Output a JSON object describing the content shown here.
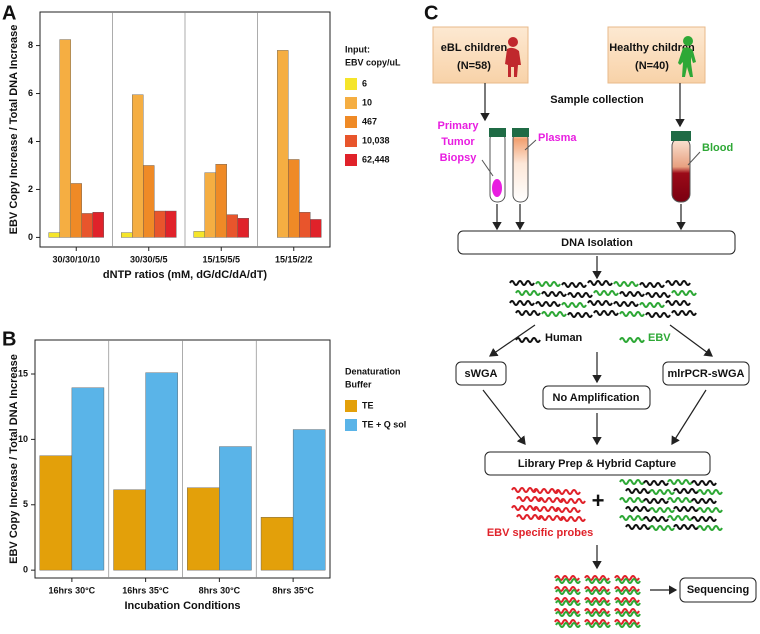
{
  "chart_data": [
    {
      "type": "bar",
      "panel": "A",
      "ylabel": "EBV Copy Increase / Total DNA Increase",
      "xlabel": "dNTP ratios (mM, dG/dC/dA/dT)",
      "categories": [
        "30/30/10/10",
        "30/30/5/5",
        "15/15/5/5",
        "15/15/2/2"
      ],
      "legend_title": [
        "Input:",
        "EBV copy/uL"
      ],
      "series": [
        {
          "name": "6",
          "color": "#f5e52a",
          "values": [
            0.2,
            0.2,
            0.25,
            null
          ]
        },
        {
          "name": "10",
          "color": "#f5ae42",
          "values": [
            8.25,
            5.95,
            2.7,
            7.8
          ]
        },
        {
          "name": "467",
          "color": "#ef8a26",
          "values": [
            2.25,
            3.0,
            3.05,
            3.25
          ]
        },
        {
          "name": "10,038",
          "color": "#e8552c",
          "values": [
            1.0,
            1.1,
            0.95,
            1.05
          ]
        },
        {
          "name": "62,448",
          "color": "#e0222a",
          "values": [
            1.05,
            1.1,
            0.8,
            0.75
          ]
        }
      ],
      "ylim": [
        -0.4,
        9.4
      ],
      "yticks": [
        0,
        2,
        4,
        6,
        8
      ],
      "legend": "right"
    },
    {
      "type": "bar",
      "panel": "B",
      "ylabel": "EBV Copy Increase / Total DNA Increase",
      "xlabel": "Incubation Conditions",
      "categories": [
        "16hrs 30°C",
        "16hrs 35°C",
        "8hrs 30°C",
        "8hrs 35°C"
      ],
      "legend_title": [
        "Denaturation",
        "Buffer"
      ],
      "series": [
        {
          "name": "TE",
          "color": "#e3a00a",
          "values": [
            8.75,
            6.15,
            6.3,
            4.05
          ]
        },
        {
          "name": "TE + Q sol",
          "color": "#5ab4e8",
          "values": [
            13.95,
            15.1,
            9.45,
            10.75
          ]
        }
      ],
      "ylim": [
        -0.6,
        17.6
      ],
      "yticks": [
        0,
        5,
        10,
        15
      ],
      "legend": "right"
    }
  ],
  "diagram": {
    "panel": "C",
    "groups": [
      {
        "label": "eBL children",
        "n": "(N=58)"
      },
      {
        "label": "Healthy children",
        "n": "(N=40)"
      }
    ],
    "sample_collection": "Sample collection",
    "biopsy": [
      "Primary",
      "Tumor",
      "Biopsy"
    ],
    "plasma": "Plasma",
    "blood": "Blood",
    "dna_isolation": "DNA Isolation",
    "human": "Human",
    "ebv": "EBV",
    "methods": [
      "sWGA",
      "No Amplification",
      "mlrPCR-sWGA"
    ],
    "library": "Library Prep & Hybrid Capture",
    "plus": "+",
    "probes": "EBV specific probes",
    "sequencing": "Sequencing"
  }
}
